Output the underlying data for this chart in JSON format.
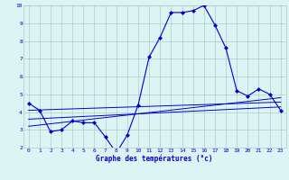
{
  "hours": [
    0,
    1,
    2,
    3,
    4,
    5,
    6,
    7,
    8,
    9,
    10,
    11,
    12,
    13,
    14,
    15,
    16,
    17,
    18,
    19,
    20,
    21,
    22,
    23
  ],
  "temp_actual": [
    4.5,
    4.1,
    2.9,
    3.0,
    3.5,
    3.4,
    3.4,
    2.6,
    1.7,
    2.7,
    4.4,
    7.1,
    8.2,
    9.6,
    9.6,
    9.7,
    10.0,
    8.9,
    7.6,
    5.2,
    4.9,
    5.3,
    5.0,
    4.1
  ],
  "trend_line1": [
    4.1,
    4.12,
    4.14,
    4.16,
    4.18,
    4.2,
    4.22,
    4.24,
    4.26,
    4.28,
    4.3,
    4.32,
    4.34,
    4.36,
    4.38,
    4.4,
    4.42,
    4.44,
    4.46,
    4.48,
    4.5,
    4.52,
    4.54,
    4.56
  ],
  "trend_line2": [
    3.2,
    3.27,
    3.34,
    3.41,
    3.48,
    3.55,
    3.62,
    3.69,
    3.76,
    3.83,
    3.9,
    3.97,
    4.04,
    4.11,
    4.18,
    4.25,
    4.32,
    4.39,
    4.46,
    4.53,
    4.6,
    4.67,
    4.74,
    4.81
  ],
  "trend_line3": [
    3.6,
    3.63,
    3.66,
    3.69,
    3.72,
    3.75,
    3.78,
    3.81,
    3.84,
    3.87,
    3.9,
    3.93,
    3.96,
    3.99,
    4.02,
    4.05,
    4.08,
    4.11,
    4.14,
    4.17,
    4.2,
    4.23,
    4.26,
    4.29
  ],
  "bg_color": "#ddf4f4",
  "grid_color": "#aacece",
  "line_color": "#0000cc",
  "xlabel": "Graphe des températures (°c)",
  "ylim": [
    2,
    10
  ],
  "xlim": [
    -0.5,
    23.5
  ],
  "yticks": [
    2,
    3,
    4,
    5,
    6,
    7,
    8,
    9,
    10
  ],
  "xticks": [
    0,
    1,
    2,
    3,
    4,
    5,
    6,
    7,
    8,
    9,
    10,
    11,
    12,
    13,
    14,
    15,
    16,
    17,
    18,
    19,
    20,
    21,
    22,
    23
  ]
}
